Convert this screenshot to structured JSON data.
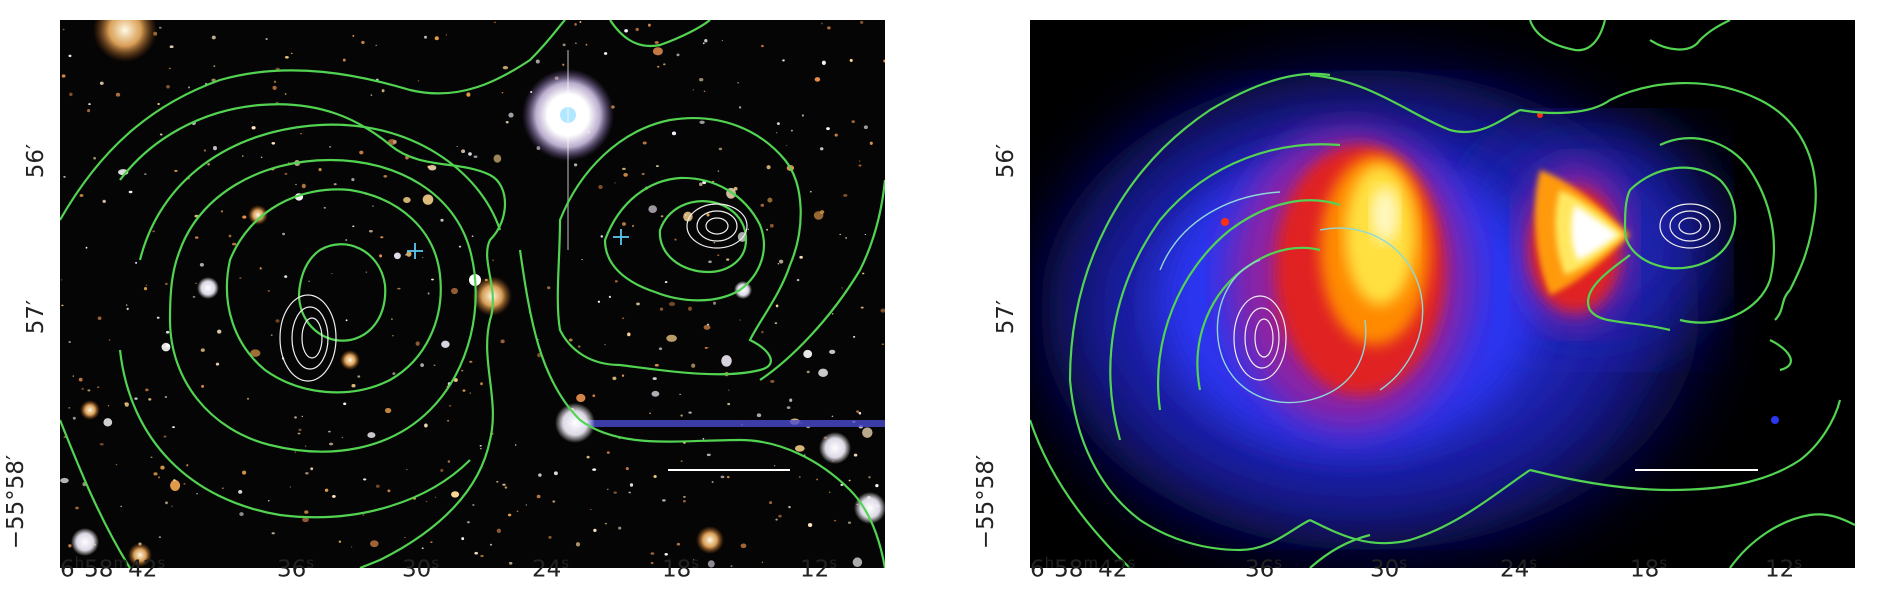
{
  "figure": {
    "panels": [
      {
        "id": "optical",
        "x_tick_labels": [
          {
            "h": "6",
            "m": "58",
            "s": "42",
            "text": "6h58m42s"
          },
          {
            "s": "36",
            "text": "36s"
          },
          {
            "s": "30",
            "text": "30s"
          },
          {
            "s": "24",
            "text": "24s"
          },
          {
            "s": "18",
            "text": "18s"
          },
          {
            "s": "12",
            "text": "12s"
          }
        ],
        "y_tick_labels": [
          "56′",
          "57′",
          "−55°58′"
        ]
      },
      {
        "id": "xray",
        "x_tick_labels": [
          {
            "h": "6",
            "m": "58",
            "s": "42",
            "text": "6h58m42s"
          },
          {
            "s": "36",
            "text": "36s"
          },
          {
            "s": "30",
            "text": "30s"
          },
          {
            "s": "24",
            "text": "24s"
          },
          {
            "s": "18",
            "text": "18s"
          },
          {
            "s": "12",
            "text": "12s"
          }
        ],
        "y_tick_labels": [
          "56′",
          "57′",
          "−55°58′"
        ]
      }
    ],
    "colors": {
      "contour_green": "#52d452",
      "contour_white": "#f0f0f0",
      "cross_cyan": "#5ec8f0",
      "scale_bar": "#ffffff",
      "xray_colormap": [
        "#000000",
        "#0a1070",
        "#2a30e0",
        "#8020a0",
        "#e02020",
        "#ff8a00",
        "#ffe040",
        "#ffffff"
      ]
    }
  }
}
